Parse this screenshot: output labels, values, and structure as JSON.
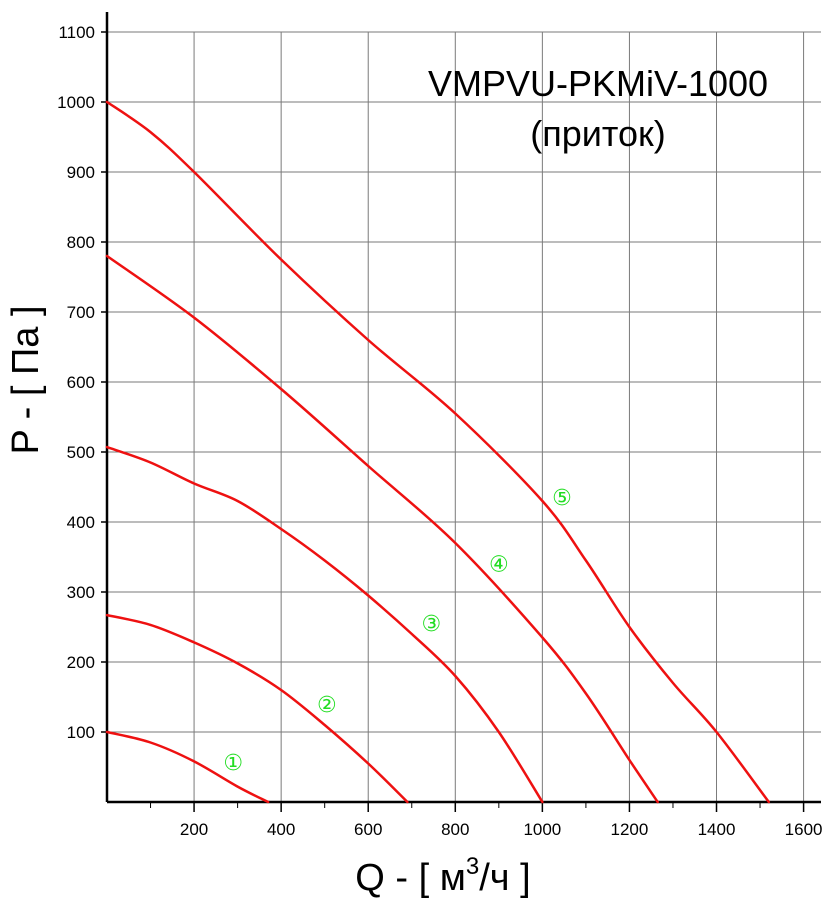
{
  "chart_data": {
    "type": "line",
    "title": "VMPVU-PKMiV-1000",
    "subtitle": "(приток)",
    "xlabel_main": "Q - [ м",
    "xlabel_sup": "3",
    "xlabel_end": "/ч ]",
    "ylabel": "P - [ Па ]",
    "xlim": [
      0,
      1640
    ],
    "ylim": [
      0,
      1100
    ],
    "x_ticks": [
      200,
      400,
      600,
      800,
      1000,
      1200,
      1400,
      1600
    ],
    "y_ticks": [
      100,
      200,
      300,
      400,
      500,
      600,
      700,
      800,
      900,
      1000,
      1100
    ],
    "grid": true,
    "line_color": "#ee1111",
    "label_color": "#22dd22",
    "series": [
      {
        "name": "①",
        "x": [
          0,
          100,
          200,
          300,
          370
        ],
        "y": [
          100,
          85,
          58,
          22,
          0
        ],
        "label_pos": [
          290,
          57
        ]
      },
      {
        "name": "②",
        "x": [
          0,
          100,
          200,
          300,
          400,
          500,
          600,
          690
        ],
        "y": [
          267,
          253,
          228,
          198,
          160,
          110,
          55,
          0
        ],
        "label_pos": [
          505,
          140
        ]
      },
      {
        "name": "③",
        "x": [
          0,
          100,
          200,
          300,
          400,
          500,
          600,
          700,
          800,
          900,
          1000
        ],
        "y": [
          507,
          485,
          455,
          430,
          390,
          345,
          295,
          240,
          180,
          100,
          0
        ],
        "label_pos": [
          745,
          256
        ]
      },
      {
        "name": "④",
        "x": [
          0,
          200,
          400,
          600,
          800,
          1000,
          1100,
          1200,
          1265
        ],
        "y": [
          780,
          692,
          590,
          480,
          370,
          235,
          155,
          60,
          0
        ],
        "label_pos": [
          900,
          341
        ]
      },
      {
        "name": "⑤",
        "x": [
          0,
          100,
          200,
          400,
          600,
          800,
          1000,
          1100,
          1200,
          1300,
          1400,
          1520
        ],
        "y": [
          1000,
          957,
          900,
          775,
          660,
          555,
          430,
          345,
          250,
          170,
          100,
          0
        ],
        "label_pos": [
          1045,
          436
        ]
      }
    ]
  }
}
